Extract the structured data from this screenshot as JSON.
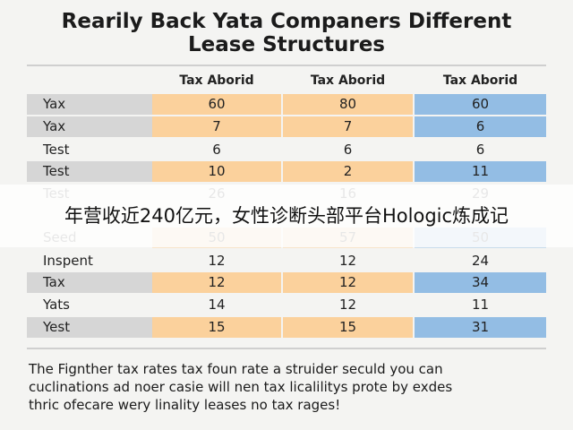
{
  "header": {
    "title": [
      "Rearily Back Yata Companers Different",
      "Lease Structures"
    ]
  },
  "table": {
    "columns": [
      "Tax Aborid",
      "Tax Aborid",
      "Tax Aborid"
    ],
    "rows": [
      [
        "Yax",
        "60",
        "80",
        "60"
      ],
      [
        "Yax",
        "7",
        "7",
        "6"
      ],
      [
        "Test",
        "6",
        "6",
        "6"
      ],
      [
        "Test",
        "10",
        "2",
        "11"
      ],
      [
        "Test",
        "26",
        "16",
        "29"
      ],
      [
        "Seed",
        "50",
        "57",
        "50"
      ],
      [
        "Inspent",
        "12",
        "12",
        "24"
      ],
      [
        "Tax",
        "12",
        "12",
        "34"
      ],
      [
        "Yats",
        "14",
        "12",
        "11"
      ],
      [
        "Yest",
        "15",
        "15",
        "31"
      ]
    ]
  },
  "banner": "年营收近240亿元，女性诊断头部平台Hologic炼成记",
  "footnote": [
    "The Fignther tax rates tax foun rate a struider seculd you can",
    "cuclinations ad noer casie will nen tax licalilitys prote by exdes",
    "thric ofecare wery linality leases no tax rages!"
  ]
}
